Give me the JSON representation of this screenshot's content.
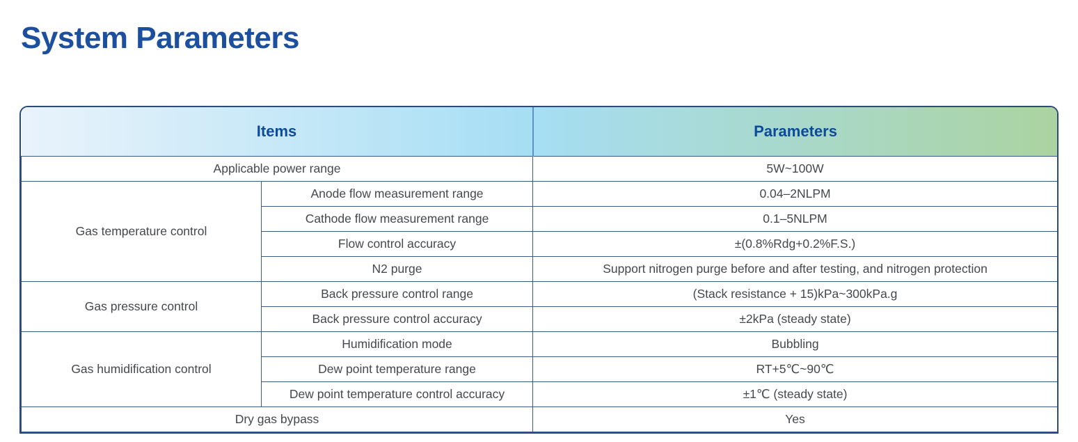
{
  "page": {
    "title": "System Parameters"
  },
  "colors": {
    "title_color": "#1c4f9d",
    "header_text": "#0d4b98",
    "body_text": "#45484c",
    "border_outer": "#2c4a77",
    "border_inner": "#3c5c85",
    "grad_left": "#e9f3fb",
    "grad_mid": "#a6def4",
    "grad_right": "#abd3a1",
    "page_bg": "#ffffff"
  },
  "table": {
    "headers": {
      "items": "Items",
      "parameters": "Parameters"
    },
    "rows": [
      {
        "item": "Applicable power range",
        "value": "5W~100W"
      },
      {
        "group": "Gas temperature control",
        "item": "Anode flow measurement range",
        "value": "0.04–2NLPM"
      },
      {
        "item": "Cathode flow measurement range",
        "value": "0.1–5NLPM"
      },
      {
        "item": "Flow control accuracy",
        "value": "±(0.8%Rdg+0.2%F.S.)"
      },
      {
        "item": "N2 purge",
        "value": "Support nitrogen purge before and after testing, and nitrogen protection"
      },
      {
        "group": "Gas pressure control",
        "item": "Back pressure control range",
        "value": "(Stack resistance + 15)kPa~300kPa.g"
      },
      {
        "item": "Back pressure control accuracy",
        "value": "±2kPa (steady state)"
      },
      {
        "group": "Gas humidification control",
        "item": "Humidification mode",
        "value": "Bubbling"
      },
      {
        "item": "Dew point temperature range",
        "value": "RT+5℃~90℃"
      },
      {
        "item": "Dew point temperature control accuracy",
        "value": "±1℃ (steady state)"
      },
      {
        "item": "Dry gas bypass",
        "value": "Yes"
      }
    ]
  }
}
